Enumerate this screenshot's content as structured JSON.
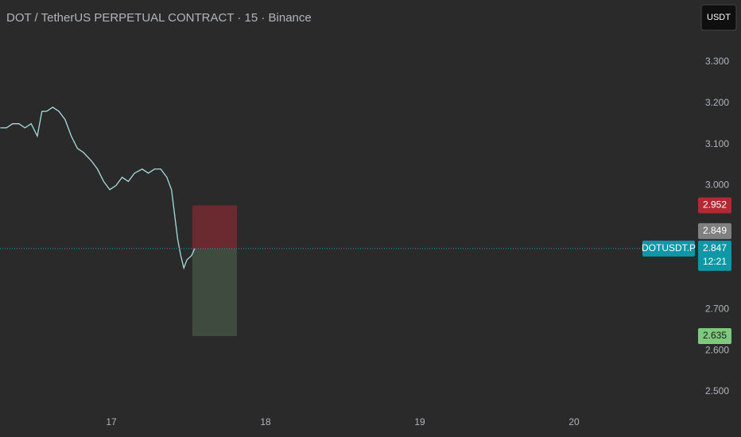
{
  "chart_data": {
    "type": "line",
    "title": "DOT / TetherUS PERPETUAL CONTRACT · 15 · Binance",
    "currency": "USDT",
    "x": [
      16.28,
      16.32,
      16.36,
      16.4,
      16.44,
      16.48,
      16.52,
      16.55,
      16.58,
      16.62,
      16.66,
      16.7,
      16.74,
      16.78,
      16.82,
      16.87,
      16.91,
      16.95,
      16.99,
      17.03,
      17.07,
      17.11,
      17.15,
      17.2,
      17.24,
      17.28,
      17.32,
      17.36,
      17.39,
      17.41,
      17.43,
      17.45,
      17.47,
      17.49,
      17.52,
      17.54
    ],
    "series": [
      {
        "name": "DOTUSDT.P",
        "color": "#a6dde0",
        "values": [
          3.14,
          3.14,
          3.15,
          3.15,
          3.14,
          3.15,
          3.12,
          3.18,
          3.18,
          3.19,
          3.18,
          3.16,
          3.12,
          3.09,
          3.08,
          3.06,
          3.04,
          3.01,
          2.99,
          3.0,
          3.02,
          3.01,
          3.03,
          3.04,
          3.03,
          3.04,
          3.04,
          3.02,
          2.99,
          2.93,
          2.87,
          2.83,
          2.8,
          2.82,
          2.83,
          2.847
        ]
      }
    ],
    "countdown": "12:21",
    "mark_price": 2.849,
    "position": {
      "entry": 2.847,
      "stop": 2.952,
      "target": 2.635,
      "x": [
        17.525,
        17.814
      ]
    },
    "xlim": [
      16.278,
      20.763
    ],
    "xticks": [
      17,
      18,
      19,
      20
    ],
    "ylim": [
      2.448,
      3.45
    ],
    "yticks": [
      {
        "value": 2.5,
        "label": "2.500"
      },
      {
        "value": 2.6,
        "label": "2.600"
      },
      {
        "value": 2.7,
        "label": "2.700"
      },
      {
        "value": 3.0,
        "label": "3.000"
      },
      {
        "value": 3.1,
        "label": "3.100"
      },
      {
        "value": 3.2,
        "label": "3.200"
      },
      {
        "value": 3.3,
        "label": "3.300"
      }
    ]
  }
}
